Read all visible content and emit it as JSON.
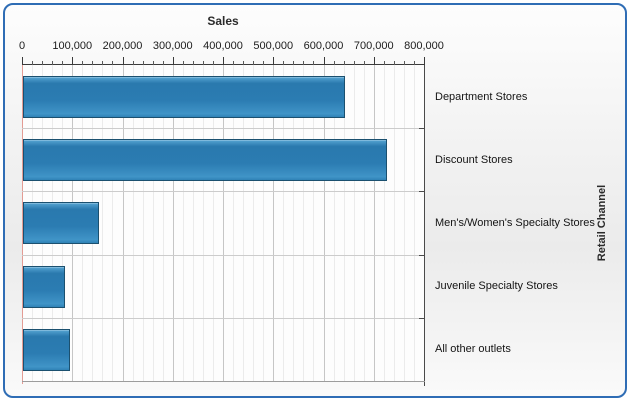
{
  "chart_data": {
    "type": "bar",
    "orientation": "horizontal",
    "title": "Sales",
    "xlabel": "Sales",
    "ylabel": "Retail Channel",
    "categories": [
      "Department Stores",
      "Discount Stores",
      "Men's/Women's Specialty Stores",
      "Juvenile Specialty Stores",
      "All other outlets"
    ],
    "values": [
      636000,
      720000,
      147000,
      79000,
      90000
    ],
    "xlim": [
      0,
      800000
    ],
    "x_major_tick_interval": 100000,
    "x_minor_tick_interval": 20000,
    "x_tick_values": [
      0,
      100000,
      200000,
      300000,
      400000,
      500000,
      600000,
      700000,
      800000
    ],
    "x_tick_labels": [
      "0",
      "100,000",
      "200,000",
      "300,000",
      "400,000",
      "500,000",
      "600,000",
      "700,000",
      "800,000"
    ],
    "grid": true,
    "legend": false,
    "colors": {
      "bar_fill": "#2d7fb5",
      "bar_border": "#1b506f",
      "zero_line": "#e39c94",
      "frame_border": "#2f6db5",
      "major_grid": "#c6c6c6",
      "minor_grid": "#ebebeb"
    }
  }
}
